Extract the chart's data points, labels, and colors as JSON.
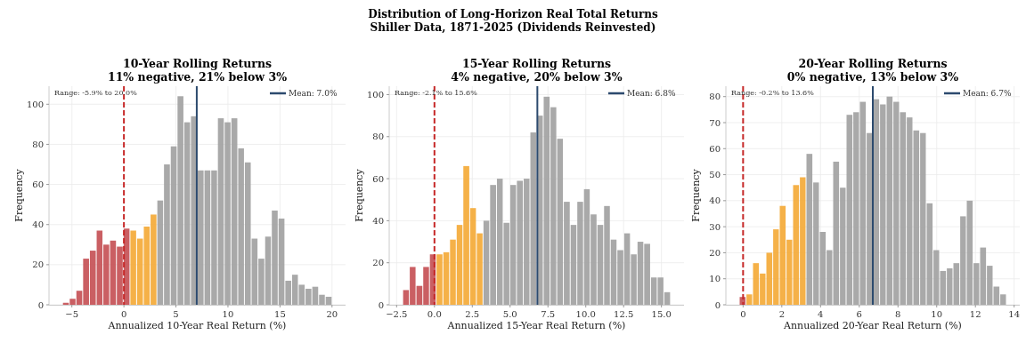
{
  "chart_data": [
    {
      "type": "other",
      "title": "Distribution of Long-Horizon Real Total Returns",
      "subtitle": "Shiller Data, 1871-2025 (Dividends Reinvested)"
    },
    {
      "type": "histogram",
      "title": "10-Year Rolling Returns",
      "subtitle": "11% negative, 21% below 3%",
      "xlabel": "Annualized 10-Year Real Return (%)",
      "ylabel": "Frequency",
      "bins": [
        -5.9,
        -5.25,
        -4.61,
        -3.96,
        -3.31,
        -2.66,
        -2.02,
        -1.37,
        -0.72,
        -0.07,
        0.58,
        1.22,
        1.87,
        2.52,
        3.17,
        3.81,
        4.46,
        5.11,
        5.76,
        6.4,
        7.05,
        7.7,
        8.35,
        8.99,
        9.64,
        10.29,
        10.94,
        11.58,
        12.23,
        12.88,
        13.53,
        14.17,
        14.82,
        15.47,
        16.12,
        16.76,
        17.41,
        18.06,
        18.71,
        19.35,
        20.0
      ],
      "values": [
        1,
        3,
        7,
        23,
        27,
        37,
        30,
        32,
        29,
        38,
        37,
        33,
        39,
        45,
        52,
        70,
        79,
        104,
        91,
        94,
        67,
        67,
        67,
        93,
        91,
        93,
        78,
        71,
        33,
        23,
        34,
        47,
        43,
        12,
        15,
        10,
        8,
        9,
        5,
        4
      ],
      "colors": [
        "#c44e52",
        "#c44e52",
        "#c44e52",
        "#c44e52",
        "#c44e52",
        "#c44e52",
        "#c44e52",
        "#c44e52",
        "#c44e52",
        "#c44e52",
        "#f4a934",
        "#f4a934",
        "#f4a934",
        "#f4a934",
        "#a0a0a0",
        "#a0a0a0",
        "#a0a0a0",
        "#a0a0a0",
        "#a0a0a0",
        "#a0a0a0",
        "#a0a0a0",
        "#a0a0a0",
        "#a0a0a0",
        "#a0a0a0",
        "#a0a0a0",
        "#a0a0a0",
        "#a0a0a0",
        "#a0a0a0",
        "#a0a0a0",
        "#a0a0a0",
        "#a0a0a0",
        "#a0a0a0",
        "#a0a0a0",
        "#a0a0a0",
        "#a0a0a0",
        "#a0a0a0",
        "#a0a0a0",
        "#a0a0a0",
        "#a0a0a0",
        "#a0a0a0"
      ],
      "xlim": [
        -7.2,
        21.3
      ],
      "ylim": [
        0,
        109
      ],
      "xticks": [
        {
          "value": -5,
          "label": "−5"
        },
        0,
        5,
        10,
        15,
        20
      ],
      "yticks": [
        0,
        20,
        40,
        60,
        80,
        100
      ],
      "ref_lines": [
        {
          "axis": "x",
          "value": 0,
          "color": "#c62828",
          "line_style": "dashed"
        }
      ],
      "series": [
        {
          "type": "line",
          "name": "Mean: 7.0%",
          "x": [
            7.0,
            7.0
          ],
          "values": [
            0,
            109
          ],
          "color": "#2c4a6e"
        }
      ],
      "annotations": [
        "Range: -5.9% to 20.0%"
      ],
      "grid": true,
      "legend": "top right"
    },
    {
      "type": "histogram",
      "title": "15-Year Rolling Returns",
      "subtitle": "4% negative, 20% below 3%",
      "xlabel": "Annualized 15-Year Real Return (%)",
      "ylabel": "Frequency",
      "bins": [
        -2.1,
        -1.66,
        -1.22,
        -0.77,
        -0.33,
        0.11,
        0.56,
        1.0,
        1.44,
        1.88,
        2.33,
        2.77,
        3.21,
        3.65,
        4.1,
        4.54,
        4.98,
        5.42,
        5.87,
        6.31,
        6.75,
        7.19,
        7.64,
        8.08,
        8.52,
        8.97,
        9.41,
        9.85,
        10.29,
        10.74,
        11.18,
        11.62,
        12.06,
        12.51,
        12.95,
        13.39,
        13.83,
        14.28,
        14.72,
        15.16,
        15.6
      ],
      "values": [
        7,
        18,
        9,
        18,
        24,
        24,
        25,
        31,
        38,
        66,
        46,
        34,
        40,
        57,
        60,
        39,
        57,
        59,
        60,
        82,
        90,
        99,
        94,
        79,
        49,
        38,
        49,
        55,
        43,
        38,
        47,
        31,
        26,
        34,
        24,
        30,
        29,
        13,
        13,
        6
      ],
      "colors": [
        "#c44e52",
        "#c44e52",
        "#c44e52",
        "#c44e52",
        "#c44e52",
        "#f4a934",
        "#f4a934",
        "#f4a934",
        "#f4a934",
        "#f4a934",
        "#f4a934",
        "#f4a934",
        "#a0a0a0",
        "#a0a0a0",
        "#a0a0a0",
        "#a0a0a0",
        "#a0a0a0",
        "#a0a0a0",
        "#a0a0a0",
        "#a0a0a0",
        "#a0a0a0",
        "#a0a0a0",
        "#a0a0a0",
        "#a0a0a0",
        "#a0a0a0",
        "#a0a0a0",
        "#a0a0a0",
        "#a0a0a0",
        "#a0a0a0",
        "#a0a0a0",
        "#a0a0a0",
        "#a0a0a0",
        "#a0a0a0",
        "#a0a0a0",
        "#a0a0a0",
        "#a0a0a0",
        "#a0a0a0",
        "#a0a0a0",
        "#a0a0a0",
        "#a0a0a0"
      ],
      "xlim": [
        -2.99,
        16.49
      ],
      "ylim": [
        0,
        104
      ],
      "xticks": [
        {
          "value": -2.5,
          "label": "−2.5"
        },
        {
          "value": 0,
          "label": "0.0"
        },
        {
          "value": 2.5,
          "label": "2.5"
        },
        {
          "value": 5,
          "label": "5.0"
        },
        {
          "value": 7.5,
          "label": "7.5"
        },
        {
          "value": 10,
          "label": "10.0"
        },
        {
          "value": 12.5,
          "label": "12.5"
        },
        {
          "value": 15,
          "label": "15.0"
        }
      ],
      "yticks": [
        0,
        20,
        40,
        60,
        80,
        100
      ],
      "ref_lines": [
        {
          "axis": "x",
          "value": 0,
          "color": "#c62828",
          "line_style": "dashed"
        }
      ],
      "series": [
        {
          "type": "line",
          "name": "Mean: 6.8%",
          "x": [
            6.8,
            6.8
          ],
          "values": [
            0,
            104
          ],
          "color": "#2c4a6e"
        }
      ],
      "annotations": [
        "Range: -2.1% to 15.6%"
      ],
      "grid": true,
      "legend": "top right"
    },
    {
      "type": "histogram",
      "title": "20-Year Rolling Returns",
      "subtitle": "0% negative, 13% below 3%",
      "xlabel": "Annualized 20-Year Real Return (%)",
      "ylabel": "Frequency",
      "bins": [
        -0.2,
        0.15,
        0.49,
        0.84,
        1.18,
        1.53,
        1.87,
        2.22,
        2.56,
        2.91,
        3.25,
        3.6,
        3.94,
        4.29,
        4.63,
        4.98,
        5.32,
        5.67,
        6.01,
        6.36,
        6.7,
        7.05,
        7.39,
        7.74,
        8.08,
        8.43,
        8.77,
        9.12,
        9.46,
        9.81,
        10.15,
        10.5,
        10.84,
        11.19,
        11.53,
        11.88,
        12.22,
        12.57,
        12.91,
        13.26,
        13.6
      ],
      "values": [
        3,
        4,
        16,
        12,
        20,
        29,
        38,
        25,
        46,
        49,
        58,
        47,
        28,
        21,
        55,
        45,
        73,
        74,
        78,
        66,
        79,
        77,
        80,
        78,
        74,
        72,
        67,
        66,
        39,
        21,
        13,
        14,
        16,
        34,
        40,
        16,
        22,
        15,
        7,
        4
      ],
      "colors": [
        "#c44e52",
        "#f4a934",
        "#f4a934",
        "#f4a934",
        "#f4a934",
        "#f4a934",
        "#f4a934",
        "#f4a934",
        "#f4a934",
        "#f4a934",
        "#a0a0a0",
        "#a0a0a0",
        "#a0a0a0",
        "#a0a0a0",
        "#a0a0a0",
        "#a0a0a0",
        "#a0a0a0",
        "#a0a0a0",
        "#a0a0a0",
        "#a0a0a0",
        "#a0a0a0",
        "#a0a0a0",
        "#a0a0a0",
        "#a0a0a0",
        "#a0a0a0",
        "#a0a0a0",
        "#a0a0a0",
        "#a0a0a0",
        "#a0a0a0",
        "#a0a0a0",
        "#a0a0a0",
        "#a0a0a0",
        "#a0a0a0",
        "#a0a0a0",
        "#a0a0a0",
        "#a0a0a0",
        "#a0a0a0",
        "#a0a0a0",
        "#a0a0a0",
        "#a0a0a0"
      ],
      "xlim": [
        -0.89,
        14.29
      ],
      "ylim": [
        0,
        84
      ],
      "xticks": [
        0,
        2,
        4,
        6,
        8,
        10,
        12,
        14
      ],
      "yticks": [
        0,
        10,
        20,
        30,
        40,
        50,
        60,
        70,
        80
      ],
      "ref_lines": [
        {
          "axis": "x",
          "value": 0,
          "color": "#c62828",
          "line_style": "dashed"
        }
      ],
      "series": [
        {
          "type": "line",
          "name": "Mean: 6.7%",
          "x": [
            6.7,
            6.7
          ],
          "values": [
            0,
            84
          ],
          "color": "#2c4a6e"
        }
      ],
      "annotations": [
        "Range: -0.2% to 13.6%"
      ],
      "grid": true,
      "legend": "top right"
    }
  ]
}
